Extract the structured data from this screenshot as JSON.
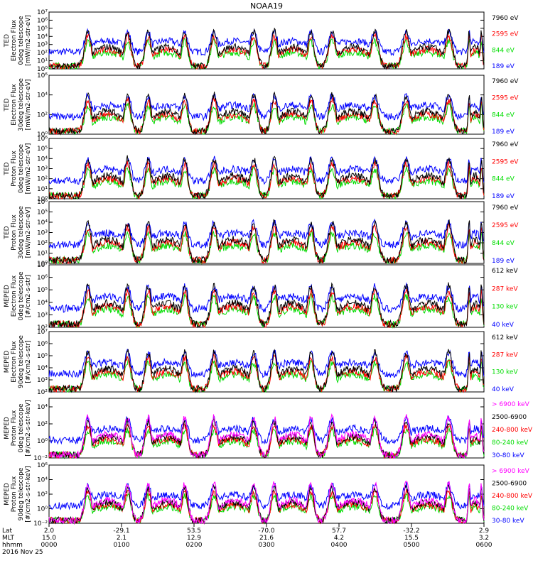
{
  "title": "NOAA19",
  "footer": {
    "row_labels": [
      "Lat",
      "MLT",
      "hhmm",
      "2016 Nov 25"
    ],
    "columns": [
      {
        "lat": "2.0",
        "mlt": "15.0",
        "hhmm": "0000"
      },
      {
        "lat": "-29.1",
        "mlt": "2.1",
        "hhmm": "0100"
      },
      {
        "lat": "53.5",
        "mlt": "12.9",
        "hhmm": "0200"
      },
      {
        "lat": "-70.0",
        "mlt": "21.6",
        "hhmm": "0300"
      },
      {
        "lat": "57.7",
        "mlt": "4.2",
        "hhmm": "0400"
      },
      {
        "lat": "-32.2",
        "mlt": "15.5",
        "hhmm": "0500"
      },
      {
        "lat": "2.9",
        "mlt": "3.2",
        "hhmm": "0600"
      }
    ]
  },
  "chart_data": [
    {
      "type": "line",
      "name": "ted-electron-0deg",
      "ylabel_lines": [
        "TED",
        "Electron Flux",
        "0deg telescope",
        "[mW/m2-str-eV]"
      ],
      "ylim": [
        1,
        10000000
      ],
      "yscale": "log",
      "ytick_labels": [
        "10⁰",
        "10¹",
        "10²",
        "10³",
        "10⁴",
        "10⁵",
        "10⁶",
        "10⁷"
      ],
      "tick_exponents": [
        0,
        1,
        2,
        3,
        4,
        5,
        6,
        7
      ],
      "series": [
        {
          "name": "7960 eV",
          "color": "#000000"
        },
        {
          "name": "2595 eV",
          "color": "#ff0000"
        },
        {
          "name": "844 eV",
          "color": "#00dd00"
        },
        {
          "name": "189 eV",
          "color": "#0000ff"
        }
      ]
    },
    {
      "type": "line",
      "name": "ted-electron-30deg",
      "ylabel_lines": [
        "TED",
        "Electron Flux",
        "30deg telescope",
        "[mW/m2-str-eV]"
      ],
      "ylim": [
        1,
        1000000
      ],
      "yscale": "log",
      "ytick_labels": [
        "10⁰",
        "10²",
        "10⁴",
        "10⁶"
      ],
      "tick_exponents": [
        0,
        2,
        4,
        6
      ],
      "series": [
        {
          "name": "7960 eV",
          "color": "#000000"
        },
        {
          "name": "2595 eV",
          "color": "#ff0000"
        },
        {
          "name": "844 eV",
          "color": "#00dd00"
        },
        {
          "name": "189 eV",
          "color": "#0000ff"
        }
      ]
    },
    {
      "type": "line",
      "name": "ted-proton-0deg",
      "ylabel_lines": [
        "TED",
        "Proton Flux",
        "0deg telescope",
        "[mW/m2-str-eV]"
      ],
      "ylim": [
        1,
        1000000
      ],
      "yscale": "log",
      "ytick_labels": [
        "10⁰",
        "10¹",
        "10²",
        "10³",
        "10⁴",
        "10⁵",
        "10⁶"
      ],
      "tick_exponents": [
        0,
        1,
        2,
        3,
        4,
        5,
        6
      ],
      "series": [
        {
          "name": "7960 eV",
          "color": "#000000"
        },
        {
          "name": "2595 eV",
          "color": "#ff0000"
        },
        {
          "name": "844 eV",
          "color": "#00dd00"
        },
        {
          "name": "189 eV",
          "color": "#0000ff"
        }
      ]
    },
    {
      "type": "line",
      "name": "ted-proton-30deg",
      "ylabel_lines": [
        "TED",
        "Proton Flux",
        "30deg telescope",
        "[mW/m2-str-eV]"
      ],
      "ylim": [
        1,
        1000000
      ],
      "yscale": "log",
      "ytick_labels": [
        "10⁰",
        "10¹",
        "10²",
        "10³",
        "10⁴",
        "10⁵",
        "10⁶"
      ],
      "tick_exponents": [
        0,
        1,
        2,
        3,
        4,
        5,
        6
      ],
      "series": [
        {
          "name": "7960 eV",
          "color": "#000000"
        },
        {
          "name": "2595 eV",
          "color": "#ff0000"
        },
        {
          "name": "844 eV",
          "color": "#00dd00"
        },
        {
          "name": "189 eV",
          "color": "#0000ff"
        }
      ]
    },
    {
      "type": "line",
      "name": "meped-electron-0deg",
      "ylabel_lines": [
        "MEPED",
        "Electron Flux",
        "0deg telescope",
        "[#/cm2-s-str]"
      ],
      "ylim": [
        100,
        10000000
      ],
      "yscale": "log",
      "ytick_labels": [
        "10²",
        "10³",
        "10⁴",
        "10⁵",
        "10⁶",
        "10⁷"
      ],
      "tick_exponents": [
        2,
        3,
        4,
        5,
        6,
        7
      ],
      "series": [
        {
          "name": "612 keV",
          "color": "#000000"
        },
        {
          "name": "287 keV",
          "color": "#ff0000"
        },
        {
          "name": "130 keV",
          "color": "#00dd00"
        },
        {
          "name": "40 keV",
          "color": "#0000ff"
        }
      ]
    },
    {
      "type": "line",
      "name": "meped-electron-90deg",
      "ylabel_lines": [
        "MEPED",
        "Electron Flux",
        "90deg telescope",
        "[#/cm2-s-str]"
      ],
      "ylim": [
        100,
        10000000
      ],
      "yscale": "log",
      "ytick_labels": [
        "10²",
        "10³",
        "10⁴",
        "10⁵",
        "10⁶",
        "10⁷"
      ],
      "tick_exponents": [
        2,
        3,
        4,
        5,
        6,
        7
      ],
      "series": [
        {
          "name": "612 keV",
          "color": "#000000"
        },
        {
          "name": "287 keV",
          "color": "#ff0000"
        },
        {
          "name": "130 keV",
          "color": "#00dd00"
        },
        {
          "name": "40 keV",
          "color": "#0000ff"
        }
      ]
    },
    {
      "type": "line",
      "name": "meped-proton-0deg",
      "ylabel_lines": [
        "MEPED",
        "Proton Flux",
        "0deg telescope",
        "[#/cm2-s-str-keV]"
      ],
      "ylim": [
        0.01,
        100000
      ],
      "yscale": "log",
      "ytick_labels": [
        "10⁻²",
        "10⁰",
        "10²",
        "10⁴"
      ],
      "tick_exponents": [
        -2,
        0,
        2,
        4
      ],
      "series": [
        {
          "name": "> 6900 keV",
          "color": "#ff00ff"
        },
        {
          "name": "2500-6900",
          "color": "#000000"
        },
        {
          "name": "240-800 keV",
          "color": "#ff0000"
        },
        {
          "name": "80-240 keV",
          "color": "#00dd00"
        },
        {
          "name": "30-80 keV",
          "color": "#0000ff"
        }
      ]
    },
    {
      "type": "line",
      "name": "meped-proton-90deg",
      "ylabel_lines": [
        "MEPED",
        "Proton Flux",
        "90deg telescope",
        "[#/cm2-s-str-keV]"
      ],
      "ylim": [
        0.01,
        1000000
      ],
      "yscale": "log",
      "ytick_labels": [
        "10⁻²",
        "10⁰",
        "10²",
        "10⁴",
        "10⁶"
      ],
      "tick_exponents": [
        -2,
        0,
        2,
        4,
        6
      ],
      "series": [
        {
          "name": "> 6900 keV",
          "color": "#ff00ff"
        },
        {
          "name": "2500-6900",
          "color": "#000000"
        },
        {
          "name": "240-800 keV",
          "color": "#ff0000"
        },
        {
          "name": "80-240 keV",
          "color": "#00dd00"
        },
        {
          "name": "30-80 keV",
          "color": "#0000ff"
        }
      ]
    }
  ]
}
